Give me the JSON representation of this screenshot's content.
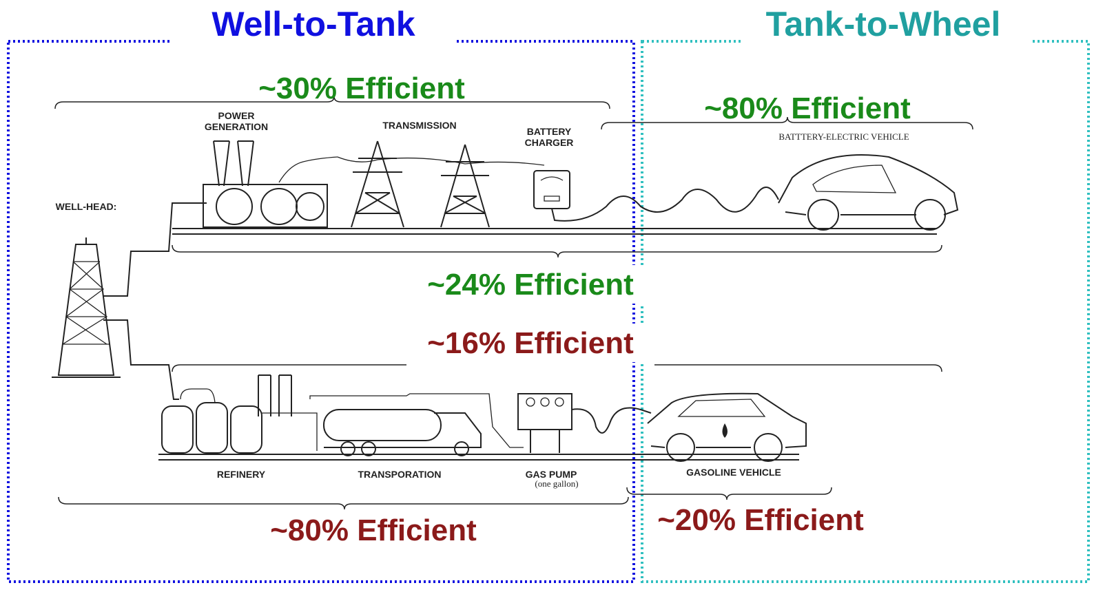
{
  "sections": [
    {
      "title": "Well-to-Tank"
    },
    {
      "title": "Tank-to-Wheel"
    }
  ],
  "efficiencies": [
    {
      "label": "~30% Efficient"
    },
    {
      "label": "~80% Efficient"
    },
    {
      "label": "~24% Efficient"
    },
    {
      "label": "~16% Efficient"
    },
    {
      "label": "~80% Efficient"
    },
    {
      "label": "~20% Efficient"
    }
  ],
  "components": [
    {
      "lines": [
        "POWER",
        "GENERATION"
      ]
    },
    {
      "lines": [
        "TRANSMISSION"
      ]
    },
    {
      "lines": [
        "BATTERY",
        "CHARGER"
      ]
    },
    {
      "lines": [
        "BATTTERY-ELECTRIC VEHICLE"
      ]
    },
    {
      "lines": [
        "WELL-HEAD:"
      ]
    },
    {
      "lines": [
        "REFINERY"
      ]
    },
    {
      "lines": [
        "TRANSPORATION"
      ]
    },
    {
      "lines": [
        "GAS PUMP",
        "(one gallon)"
      ]
    },
    {
      "lines": [
        "GASOLINE VEHICLE"
      ]
    }
  ]
}
